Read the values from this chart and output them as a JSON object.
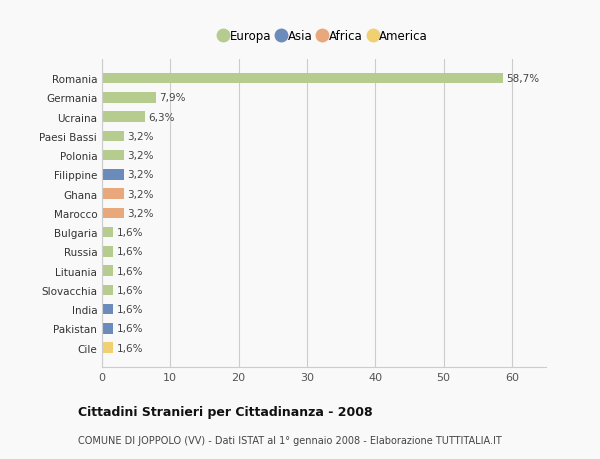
{
  "categories": [
    "Romania",
    "Germania",
    "Ucraina",
    "Paesi Bassi",
    "Polonia",
    "Filippine",
    "Ghana",
    "Marocco",
    "Bulgaria",
    "Russia",
    "Lituania",
    "Slovacchia",
    "India",
    "Pakistan",
    "Cile"
  ],
  "values": [
    58.7,
    7.9,
    6.3,
    3.2,
    3.2,
    3.2,
    3.2,
    3.2,
    1.6,
    1.6,
    1.6,
    1.6,
    1.6,
    1.6,
    1.6
  ],
  "labels": [
    "58,7%",
    "7,9%",
    "6,3%",
    "3,2%",
    "3,2%",
    "3,2%",
    "3,2%",
    "3,2%",
    "1,6%",
    "1,6%",
    "1,6%",
    "1,6%",
    "1,6%",
    "1,6%",
    "1,6%"
  ],
  "continents": [
    "Europa",
    "Europa",
    "Europa",
    "Europa",
    "Europa",
    "Asia",
    "Africa",
    "Africa",
    "Europa",
    "Europa",
    "Europa",
    "Europa",
    "Asia",
    "Asia",
    "America"
  ],
  "continent_colors": {
    "Europa": "#b5cc8e",
    "Asia": "#6b8cba",
    "Africa": "#e8a87c",
    "America": "#f0d070"
  },
  "legend_order": [
    "Europa",
    "Asia",
    "Africa",
    "America"
  ],
  "legend_colors": [
    "#b5cc8e",
    "#6b8cba",
    "#e8a87c",
    "#f0d070"
  ],
  "xlim": [
    0,
    65
  ],
  "xticks": [
    0,
    10,
    20,
    30,
    40,
    50,
    60
  ],
  "title": "Cittadini Stranieri per Cittadinanza - 2008",
  "subtitle": "COMUNE DI JOPPOLO (VV) - Dati ISTAT al 1° gennaio 2008 - Elaborazione TUTTITALIA.IT",
  "background_color": "#f9f9f9",
  "grid_color": "#cccccc",
  "bar_height": 0.55
}
